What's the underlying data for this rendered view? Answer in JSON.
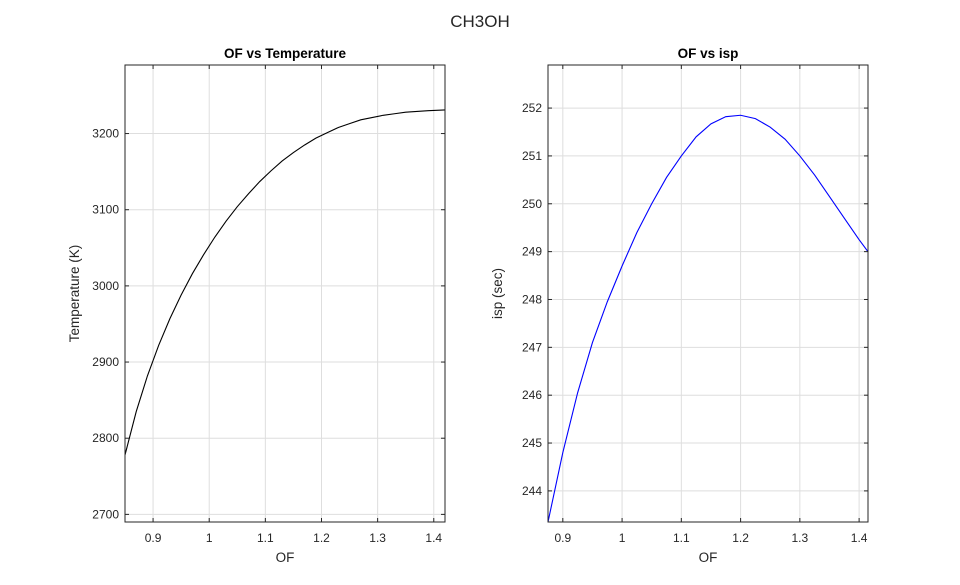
{
  "figure": {
    "title": "CH3OH"
  },
  "chart_data": [
    {
      "type": "line",
      "title": "OF vs Temperature",
      "xlabel": "OF",
      "ylabel": "Temperature (K)",
      "xlim": [
        0.85,
        1.42
      ],
      "ylim": [
        2690,
        3290
      ],
      "xticks": [
        0.9,
        1.0,
        1.1,
        1.2,
        1.3,
        1.4
      ],
      "xtick_labels": [
        "0.9",
        "1",
        "1.1",
        "1.2",
        "1.3",
        "1.4"
      ],
      "yticks": [
        2700,
        2800,
        2900,
        3000,
        3100,
        3200
      ],
      "ytick_labels": [
        "2700",
        "2800",
        "2900",
        "3000",
        "3100",
        "3200"
      ],
      "grid": true,
      "series": [
        {
          "color": "#000000",
          "x": [
            0.85,
            0.87,
            0.89,
            0.91,
            0.93,
            0.95,
            0.97,
            0.99,
            1.01,
            1.03,
            1.05,
            1.07,
            1.09,
            1.11,
            1.13,
            1.15,
            1.17,
            1.19,
            1.21,
            1.23,
            1.25,
            1.27,
            1.29,
            1.31,
            1.33,
            1.35,
            1.37,
            1.39,
            1.42
          ],
          "y": [
            2778,
            2835,
            2882,
            2922,
            2957,
            2988,
            3016,
            3041,
            3064,
            3085,
            3104,
            3121,
            3137,
            3151,
            3164,
            3175,
            3185,
            3194,
            3201,
            3208,
            3213,
            3218,
            3221,
            3224,
            3226,
            3228,
            3229,
            3230,
            3231
          ]
        }
      ]
    },
    {
      "type": "line",
      "title": "OF vs isp",
      "xlabel": "OF",
      "ylabel": "isp (sec)",
      "xlim": [
        0.875,
        1.415
      ],
      "ylim": [
        243.35,
        252.9
      ],
      "xticks": [
        0.9,
        1.0,
        1.1,
        1.2,
        1.3,
        1.4
      ],
      "xtick_labels": [
        "0.9",
        "1",
        "1.1",
        "1.2",
        "1.3",
        "1.4"
      ],
      "yticks": [
        244,
        245,
        246,
        247,
        248,
        249,
        250,
        251,
        252
      ],
      "ytick_labels": [
        "244",
        "245",
        "246",
        "247",
        "248",
        "249",
        "250",
        "251",
        "252"
      ],
      "grid": true,
      "series": [
        {
          "color": "#0000ff",
          "x": [
            0.875,
            0.9,
            0.925,
            0.95,
            0.975,
            1.0,
            1.025,
            1.05,
            1.075,
            1.1,
            1.125,
            1.15,
            1.175,
            1.2,
            1.225,
            1.25,
            1.275,
            1.3,
            1.325,
            1.35,
            1.375,
            1.4,
            1.415
          ],
          "y": [
            243.35,
            244.8,
            246.05,
            247.1,
            247.95,
            248.7,
            249.4,
            250.0,
            250.55,
            251.0,
            251.4,
            251.67,
            251.82,
            251.85,
            251.78,
            251.6,
            251.35,
            251.0,
            250.6,
            250.15,
            249.7,
            249.25,
            249.0
          ]
        }
      ]
    }
  ]
}
